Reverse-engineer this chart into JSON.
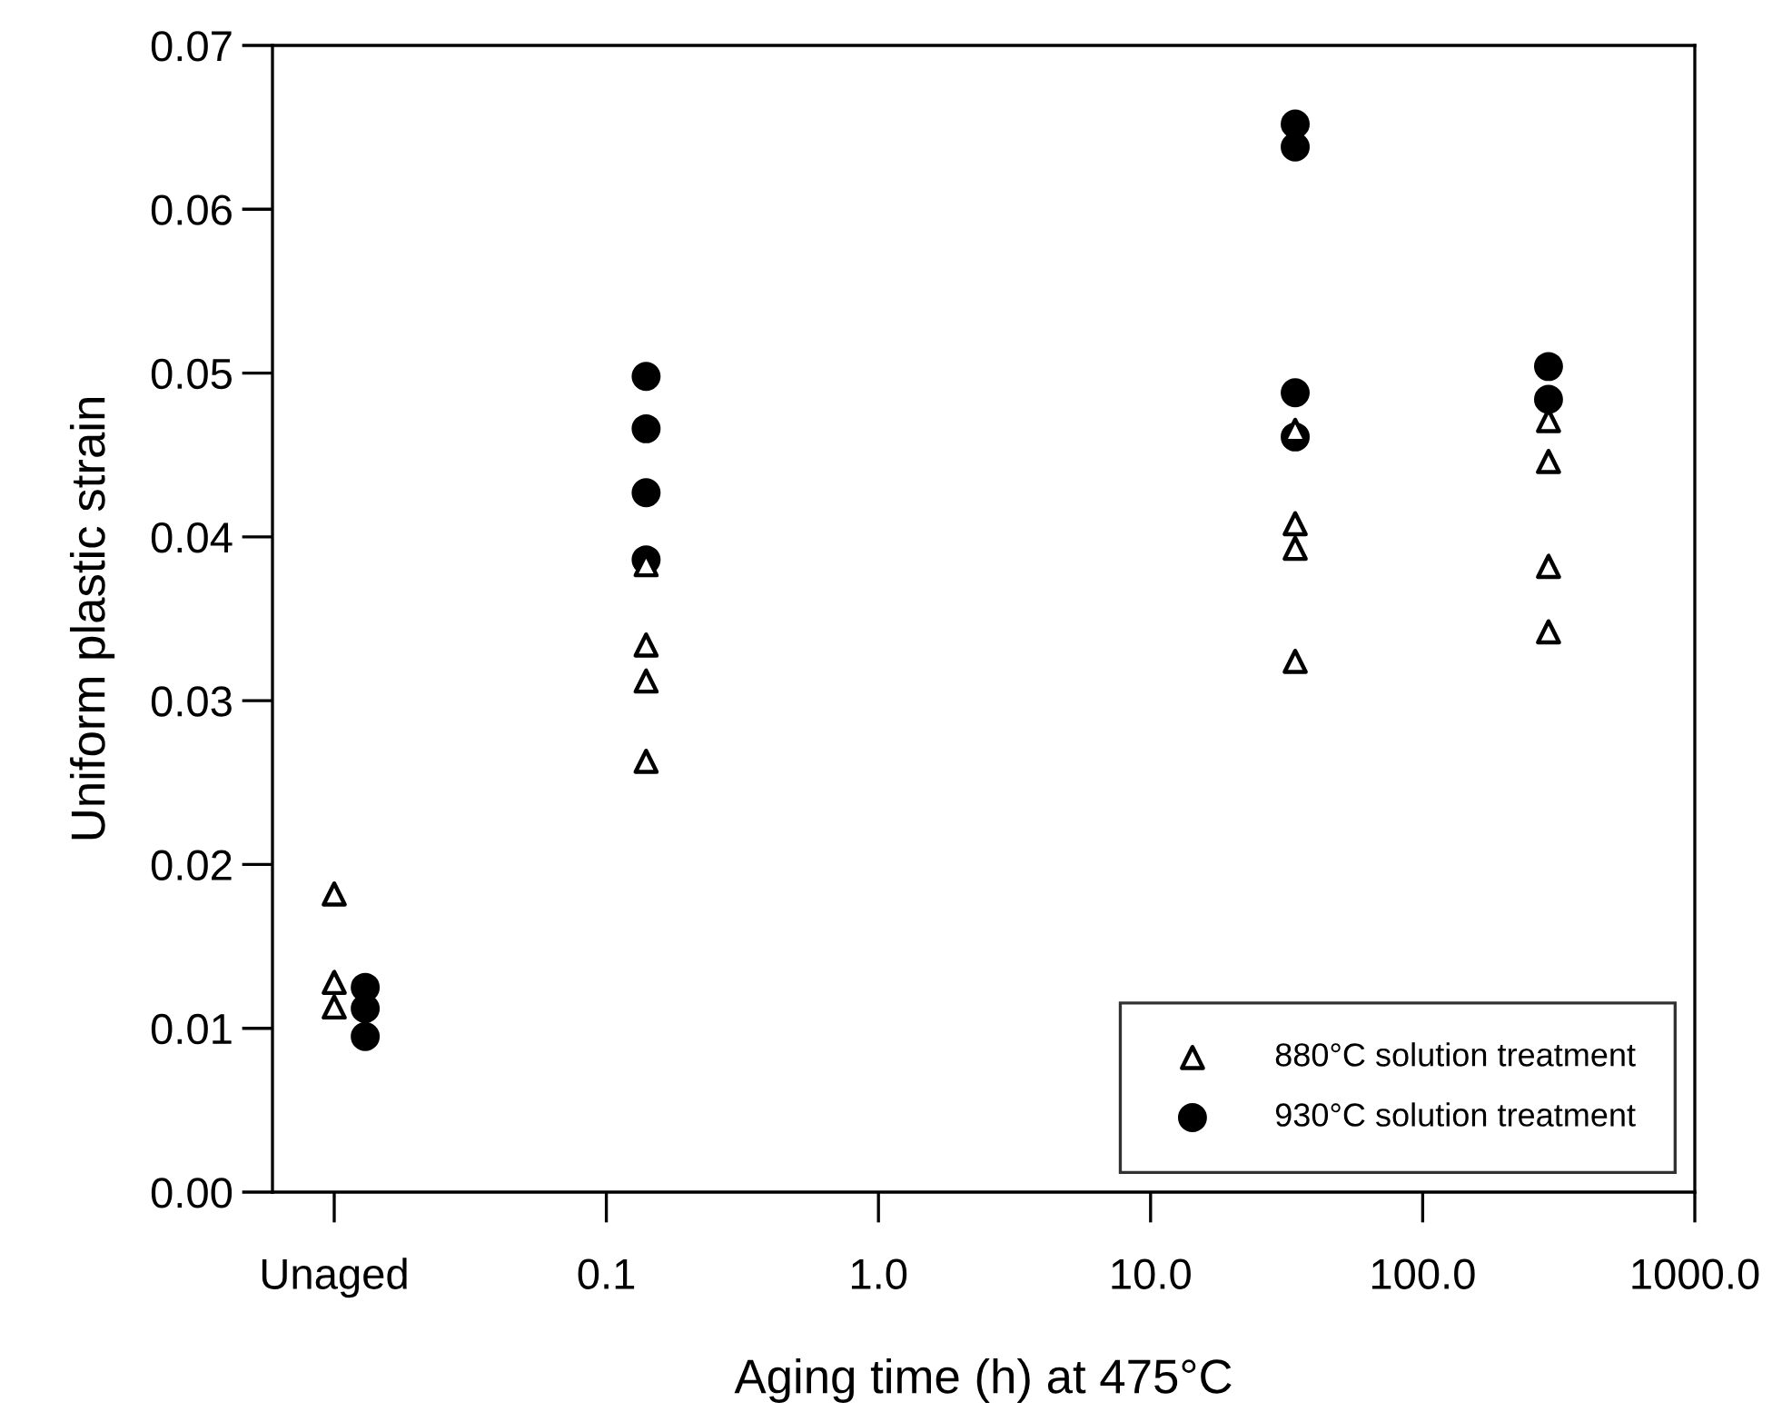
{
  "chart_data": {
    "type": "scatter",
    "xlabel": "Aging time (h) at 475°C",
    "ylabel": "Uniform plastic strain",
    "log": "x",
    "xlim": [
      0.00593,
      1000
    ],
    "xticks": [
      {
        "value": 0.01,
        "label": "Unaged"
      },
      0.1,
      {
        "value": 1,
        "label": "1.0"
      },
      {
        "value": 10,
        "label": "10.0"
      },
      {
        "value": 100,
        "label": "100.0"
      },
      {
        "value": 1000,
        "label": "1000.0"
      }
    ],
    "ylim": [
      0,
      0.07
    ],
    "yticks": [
      {
        "value": 0,
        "label": "0.00"
      },
      {
        "value": 0.01,
        "label": "0.01"
      },
      {
        "value": 0.02,
        "label": "0.02"
      },
      {
        "value": 0.03,
        "label": "0.03"
      },
      {
        "value": 0.04,
        "label": "0.04"
      },
      {
        "value": 0.05,
        "label": "0.05"
      },
      {
        "value": 0.06,
        "label": "0.06"
      },
      {
        "value": 0.07,
        "label": "0.07"
      }
    ],
    "legend": "bottom right",
    "grid": false,
    "series": [
      {
        "name": "880°C solution treatment",
        "color": "#000000",
        "marker": "triangle",
        "x": [
          0.01,
          0.01,
          0.01,
          0.14,
          0.14,
          0.14,
          0.14,
          34,
          34,
          34,
          34,
          290,
          290,
          290,
          290
        ],
        "values": [
          0.0182,
          0.0128,
          0.0113,
          0.0383,
          0.0334,
          0.0312,
          0.0263,
          0.0465,
          0.0408,
          0.0393,
          0.0324,
          0.0471,
          0.0446,
          0.0382,
          0.0342
        ]
      },
      {
        "name": "930°C solution treatment",
        "color": "#000000",
        "marker": "circle",
        "x": [
          0.013,
          0.013,
          0.013,
          0.14,
          0.14,
          0.14,
          0.14,
          34,
          34,
          34,
          34,
          290,
          290
        ],
        "values": [
          0.0125,
          0.0112,
          0.0095,
          0.0498,
          0.0466,
          0.0427,
          0.0386,
          0.0652,
          0.0638,
          0.0488,
          0.0461,
          0.0504,
          0.0484
        ]
      }
    ]
  }
}
